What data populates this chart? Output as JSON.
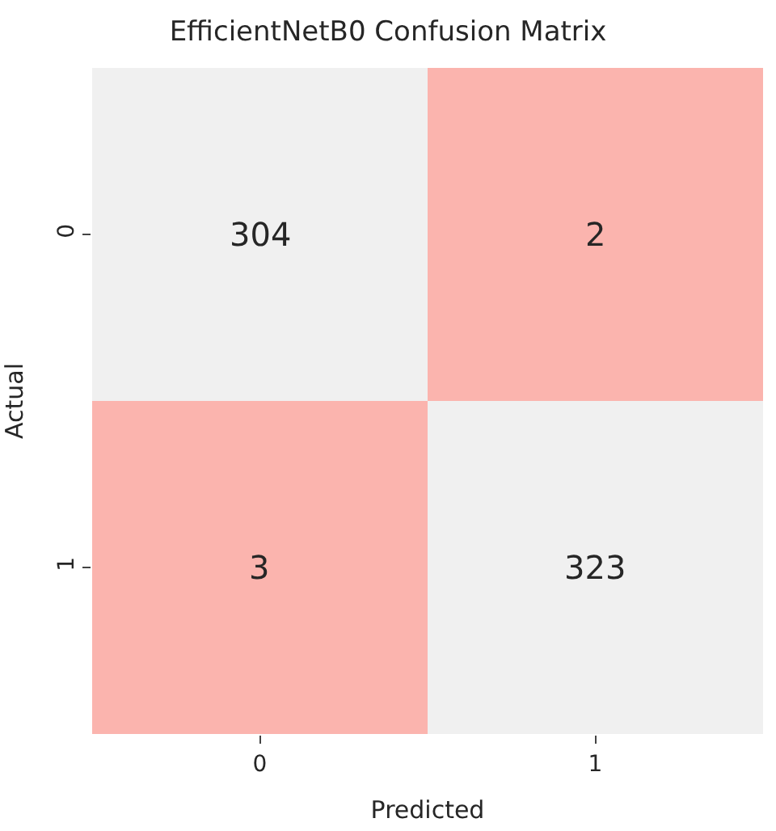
{
  "chart_data": {
    "type": "heatmap",
    "title": "EfficientNetB0 Confusion Matrix",
    "xlabel": "Predicted",
    "ylabel": "Actual",
    "categories": [
      "0",
      "1"
    ],
    "y_categories": [
      "0",
      "1"
    ],
    "cells": [
      [
        304,
        2
      ],
      [
        3,
        323
      ]
    ],
    "colors": [
      "#f0f0f0",
      "#fbb4ae",
      "#fbb4ae",
      "#f0f0f0"
    ],
    "data_labels": true
  }
}
